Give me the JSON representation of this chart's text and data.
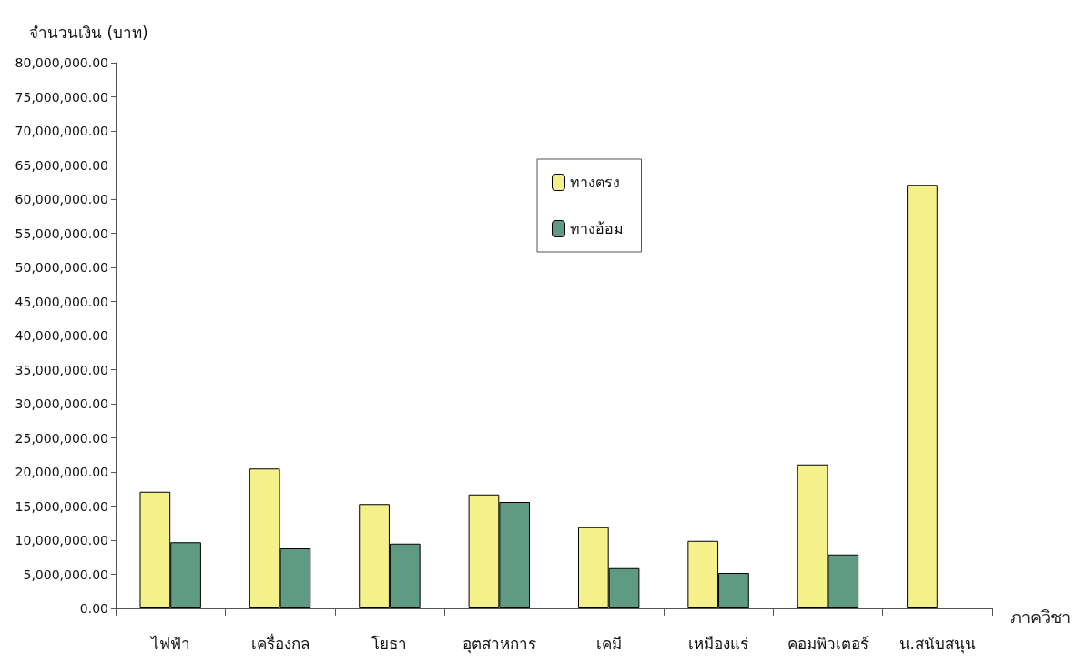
{
  "chart_data": {
    "type": "bar",
    "ylabel": "จำนวนเงิน (บาท)",
    "xlabel": "ภาควิชา",
    "categories": [
      "ไฟฟ้า",
      "เครื่องกล",
      "โยธา",
      "อุตสาหการ",
      "เคมี",
      "เหมืองแร่",
      "คอมพิวเตอร์",
      "น.สนับสนุน"
    ],
    "series": [
      {
        "name": "ทางตรง",
        "color": "#f4f08a",
        "values": [
          17100000,
          20500000,
          15300000,
          16700000,
          11900000,
          9900000,
          21100000,
          62100000
        ]
      },
      {
        "name": "ทางอ้อม",
        "color": "#5f9a82",
        "values": [
          9700000,
          8800000,
          9500000,
          15600000,
          5900000,
          5200000,
          7900000,
          null
        ]
      }
    ],
    "ylim": [
      0,
      80000000
    ],
    "yticks": [
      {
        "value": 0,
        "label": "0.00"
      },
      {
        "value": 5000000,
        "label": "5,000,000.00"
      },
      {
        "value": 10000000,
        "label": "10,000,000.00"
      },
      {
        "value": 15000000,
        "label": "15,000,000.00"
      },
      {
        "value": 20000000,
        "label": "20,000,000.00"
      },
      {
        "value": 25000000,
        "label": "25,000,000.00"
      },
      {
        "value": 30000000,
        "label": "30,000,000.00"
      },
      {
        "value": 35000000,
        "label": "35,000,000.00"
      },
      {
        "value": 40000000,
        "label": "40,000,000.00"
      },
      {
        "value": 45000000,
        "label": "45,000,000.00"
      },
      {
        "value": 50000000,
        "label": "50,000,000.00"
      },
      {
        "value": 55000000,
        "label": "55,000,000.00"
      },
      {
        "value": 60000000,
        "label": "60,000,000.00"
      },
      {
        "value": 65000000,
        "label": "65,000,000.00"
      },
      {
        "value": 70000000,
        "label": "70,000,000.00"
      },
      {
        "value": 75000000,
        "label": "75,000,000.00"
      },
      {
        "value": 80000000,
        "label": "80,000,000.00"
      }
    ],
    "grid": false,
    "legend": "top"
  }
}
